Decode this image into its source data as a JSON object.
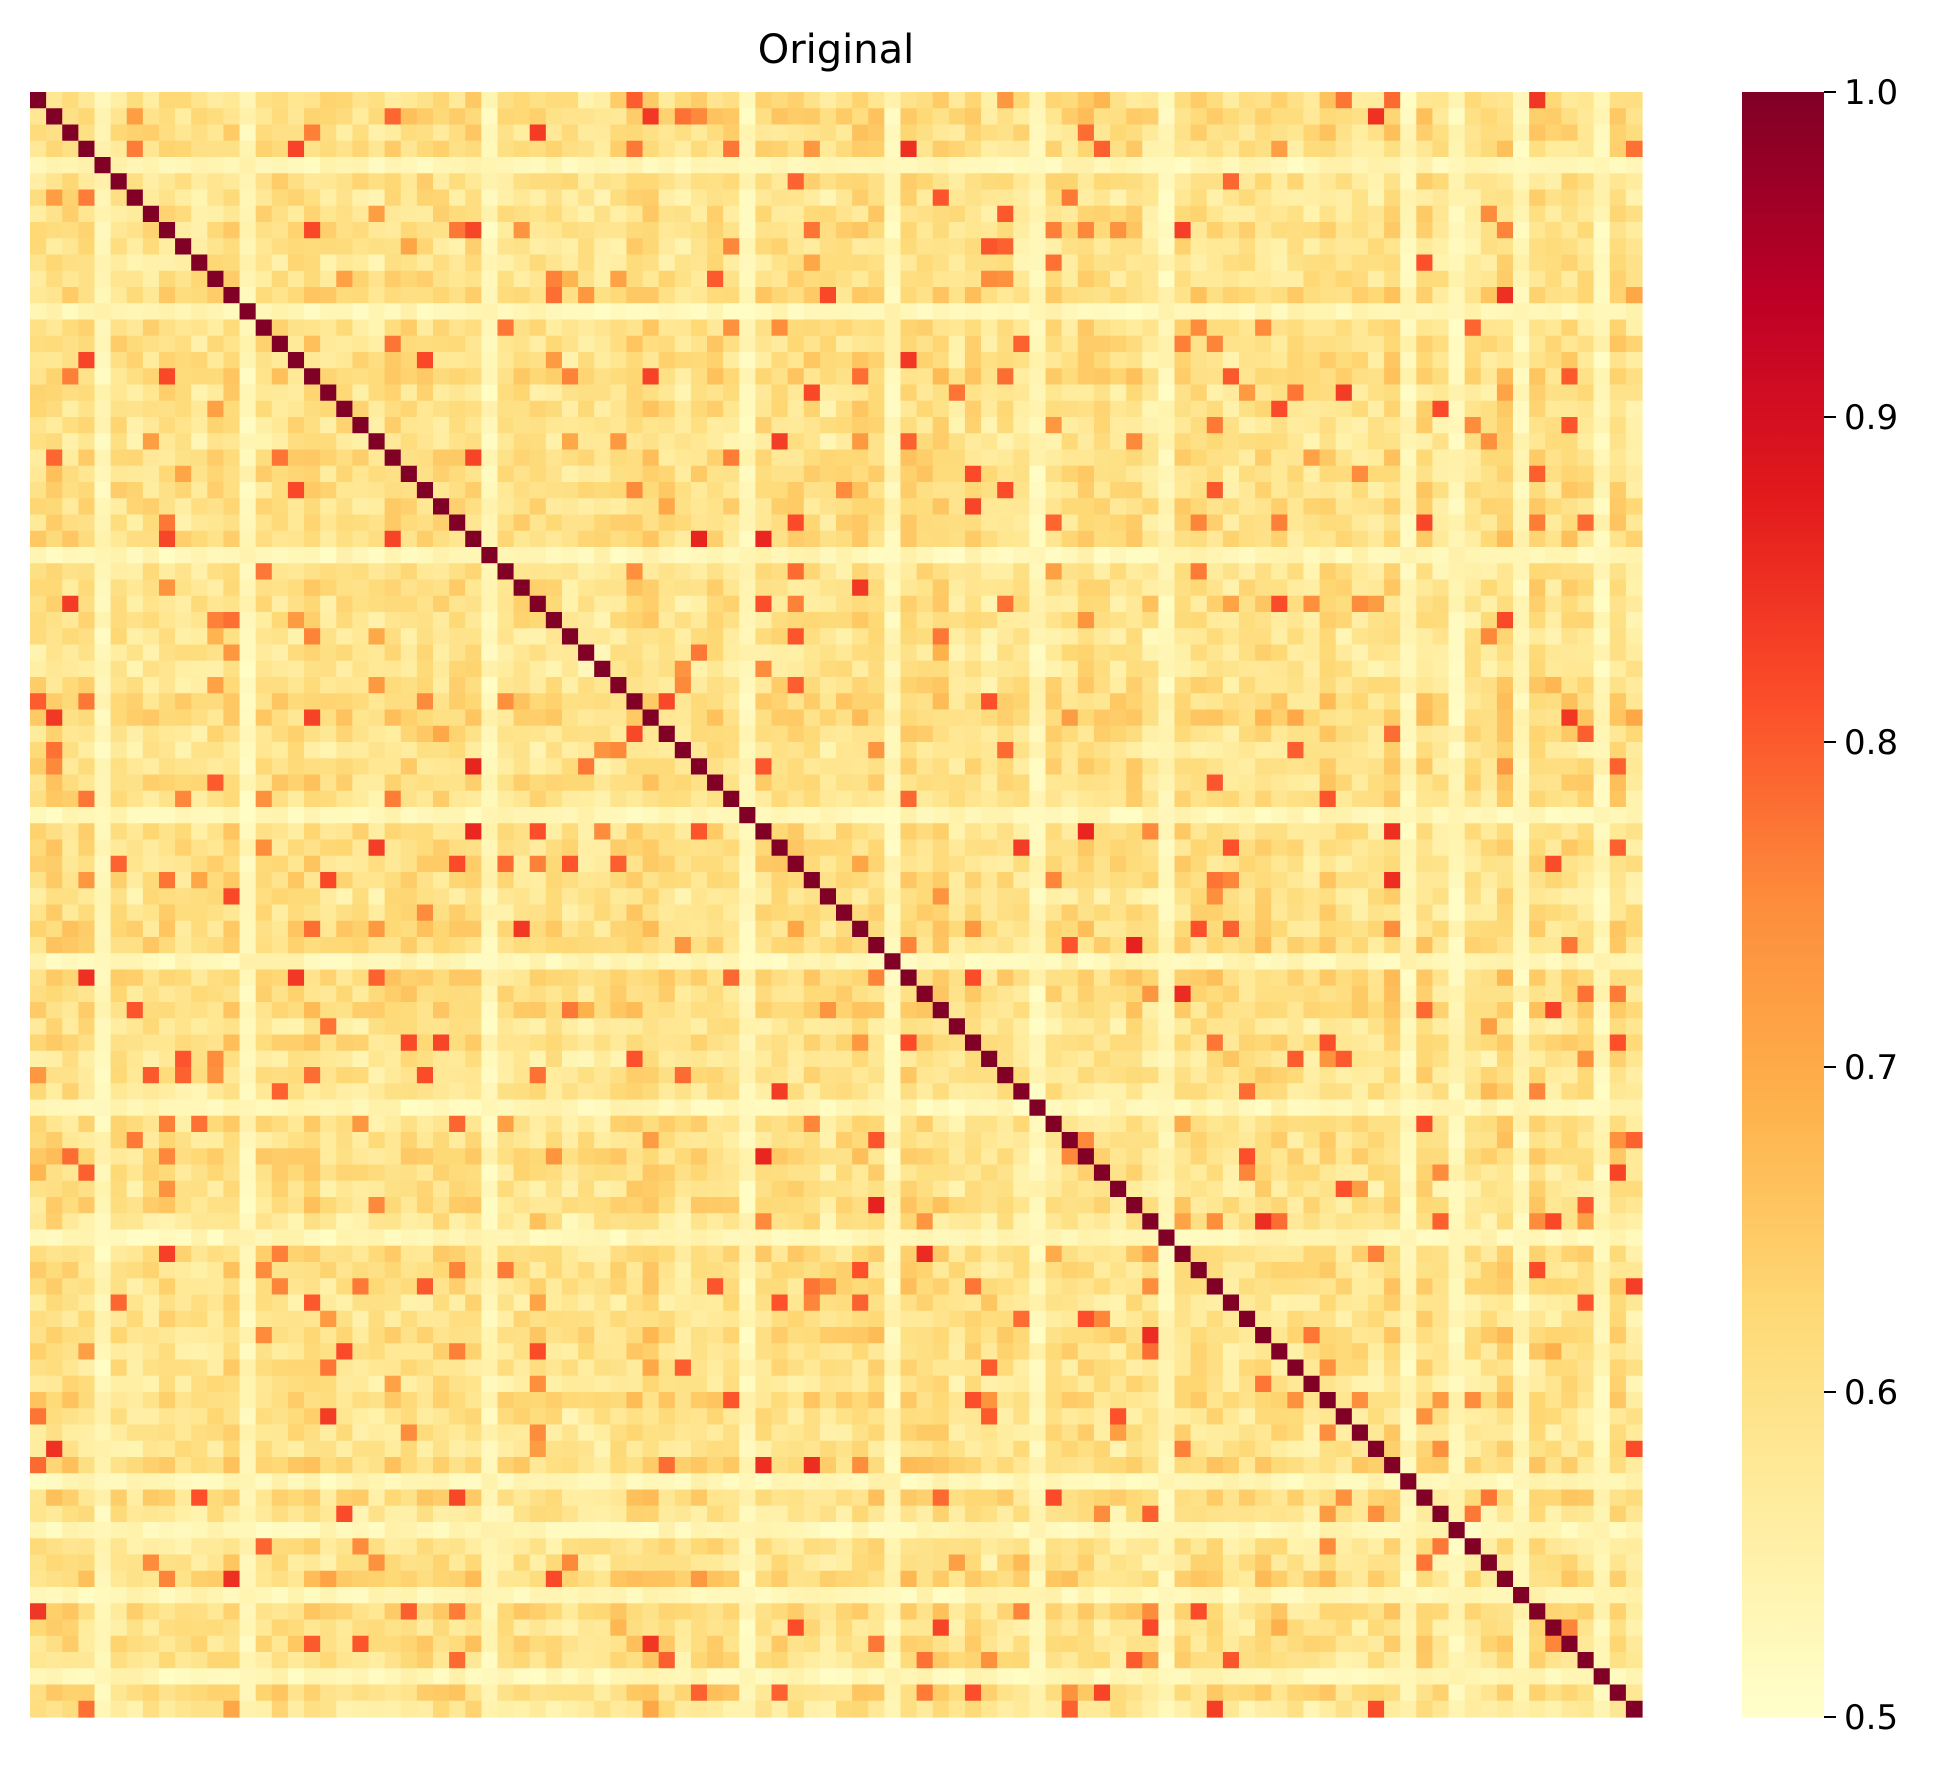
{
  "chart_data": {
    "type": "heatmap",
    "title": "Original",
    "xlabel": "",
    "ylabel": "",
    "matrix_size": 100,
    "diagonal_value": 1.0,
    "value_range": [
      0.5,
      1.0
    ],
    "colormap": "YlOrRd",
    "colormap_stops": [
      {
        "v": 0.0,
        "color": "#ffffcc"
      },
      {
        "v": 0.125,
        "color": "#ffeda0"
      },
      {
        "v": 0.25,
        "color": "#fed976"
      },
      {
        "v": 0.375,
        "color": "#feb24c"
      },
      {
        "v": 0.5,
        "color": "#fd8d3c"
      },
      {
        "v": 0.625,
        "color": "#fc4e2a"
      },
      {
        "v": 0.75,
        "color": "#e31a1c"
      },
      {
        "v": 0.875,
        "color": "#bd0026"
      },
      {
        "v": 1.0,
        "color": "#800026"
      }
    ],
    "colorbar": {
      "ticks": [
        0.5,
        0.6,
        0.7,
        0.8,
        0.9,
        1.0
      ],
      "tick_labels": [
        "0.5",
        "0.6",
        "0.7",
        "0.8",
        "0.9",
        "1.0"
      ]
    },
    "offdiagonal_typical_range": [
      0.5,
      0.88
    ],
    "x_ticks_shown": false,
    "y_ticks_shown": false,
    "grid": false
  }
}
